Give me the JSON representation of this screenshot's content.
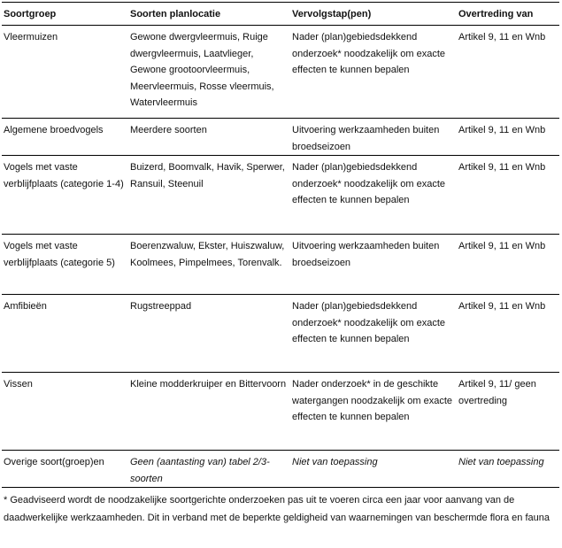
{
  "table": {
    "headers": [
      "Soortgroep",
      "Soorten planlocatie",
      "Vervolgstap(pen)",
      "Overtreding van"
    ],
    "rows": [
      [
        "Vleermuizen",
        "Gewone dwergvleermuis, Ruige dwergvleermuis, Laatvlieger, Gewone grootoorvleermuis, Meervleermuis, Rosse vleermuis, Watervleermuis",
        "Nader (plan)gebiedsdekkend onderzoek* noodzakelijk om exacte effecten te kunnen bepalen",
        "Artikel 9, 11 en Wnb"
      ],
      [
        "Algemene broedvogels",
        "Meerdere soorten",
        "Uitvoering werkzaamheden buiten broedseizoen",
        "Artikel 9, 11 en Wnb"
      ],
      [
        "Vogels met vaste verblijfplaats (categorie 1-4)",
        "Buizerd, Boomvalk, Havik, Sperwer, Ransuil, Steenuil",
        "Nader (plan)gebiedsdekkend onderzoek* noodzakelijk om exacte effecten te kunnen bepalen",
        "Artikel 9, 11 en Wnb"
      ],
      [
        "Vogels met vaste verblijfplaats (categorie 5)",
        "Boerenzwaluw, Ekster, Huiszwaluw, Koolmees, Pimpelmees, Torenvalk.",
        "Uitvoering werkzaamheden buiten broedseizoen",
        "Artikel 9, 11 en Wnb"
      ],
      [
        "Amfibieën",
        "Rugstreeppad",
        "Nader (plan)gebiedsdekkend onderzoek* noodzakelijk om exacte effecten te kunnen bepalen",
        "Artikel 9, 11 en Wnb"
      ],
      [
        "Vissen",
        "Kleine modderkruiper en Bittervoorn",
        "Nader onderzoek* in de geschikte watergangen noodzakelijk om exacte effecten te kunnen bepalen",
        "Artikel 9, 11/ geen overtreding"
      ],
      [
        "Overige soort(groep)en",
        "Geen (aantasting van) tabel 2/3-soorten",
        "Niet van toepassing",
        "Niet van toepassing"
      ]
    ]
  },
  "footnote": "* Geadviseerd wordt de noodzakelijke soortgerichte onderzoeken pas uit te voeren circa een jaar voor aanvang van de daadwerkelijke werkzaamheden. Dit in verband met de beperkte geldigheid van waarnemingen van beschermde flora en fauna"
}
